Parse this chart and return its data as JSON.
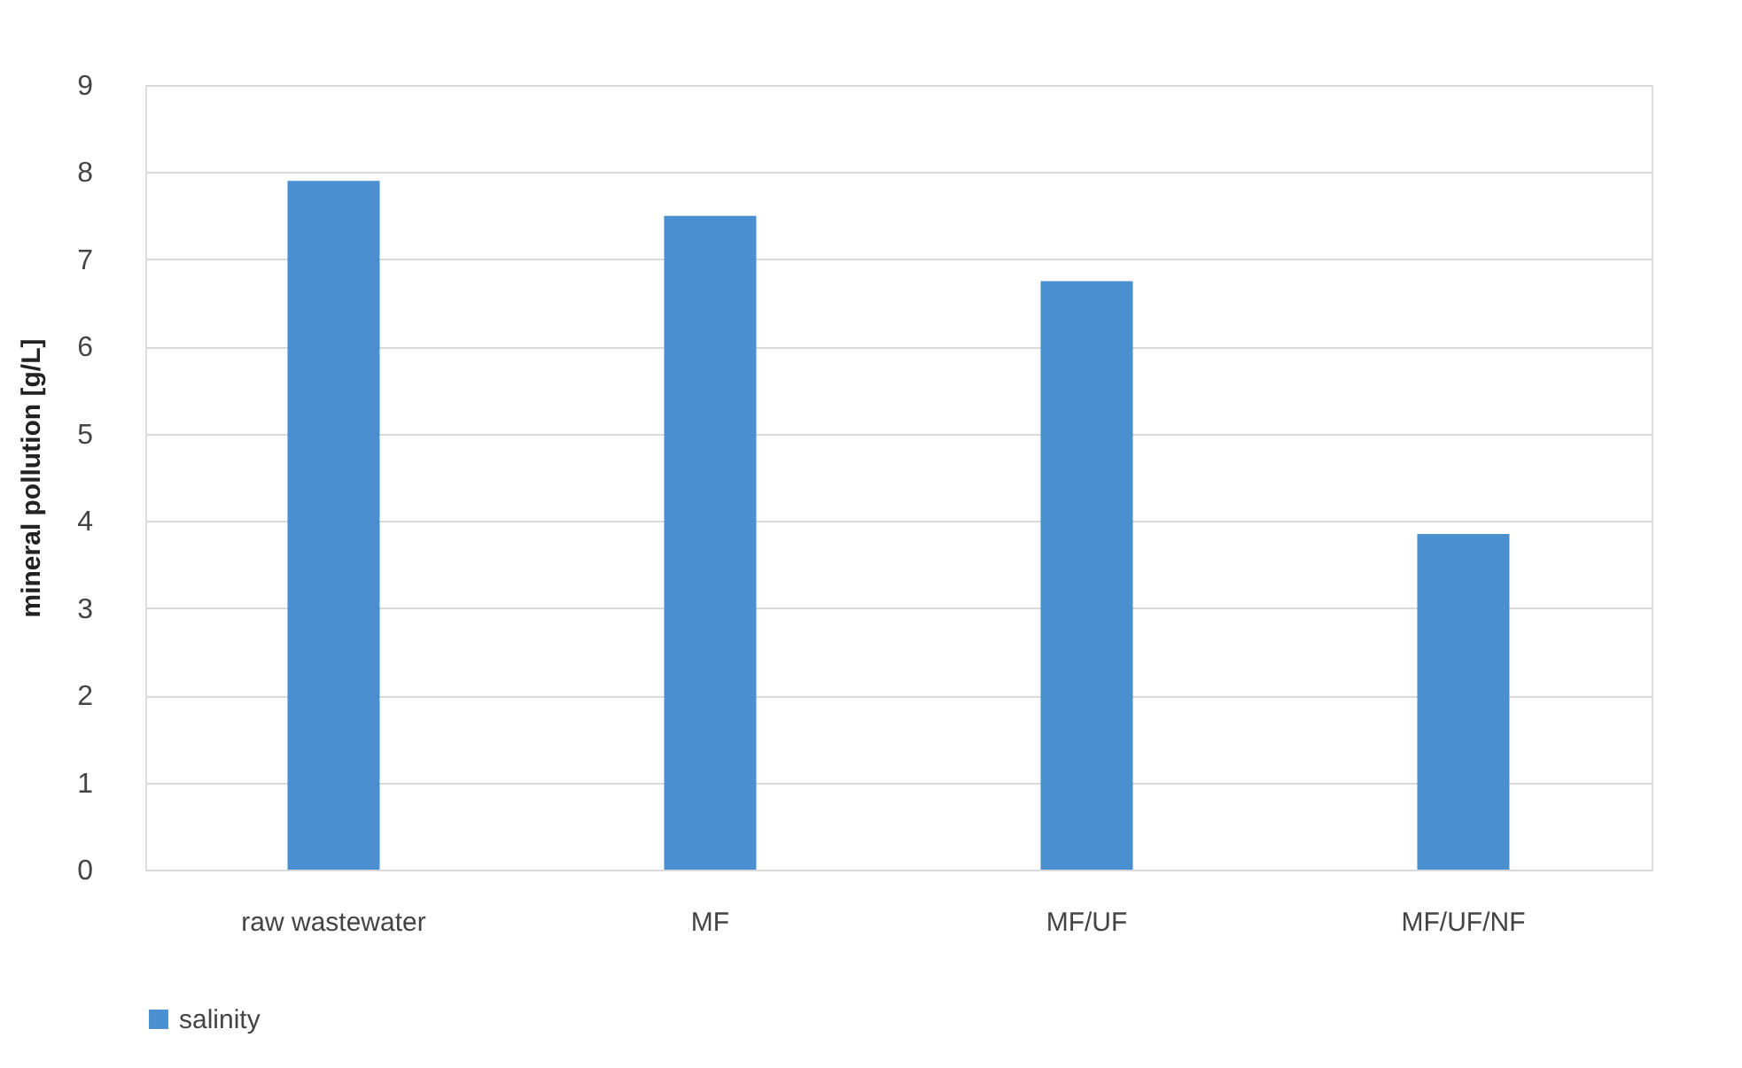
{
  "chart_data": {
    "type": "bar",
    "ylabel": "mineral pollution [g/L]",
    "categories": [
      "raw wastewater",
      "MF",
      "MF/UF",
      "MF/UF/NF"
    ],
    "series": [
      {
        "name": "salinity",
        "color": "#4a8fd0",
        "values": [
          7.9,
          7.5,
          6.75,
          3.85
        ]
      }
    ],
    "ylim": [
      0,
      9
    ],
    "yticks": [
      0,
      1,
      2,
      3,
      4,
      5,
      6,
      7,
      8,
      9
    ],
    "grid": "y",
    "legend": "bottom"
  }
}
